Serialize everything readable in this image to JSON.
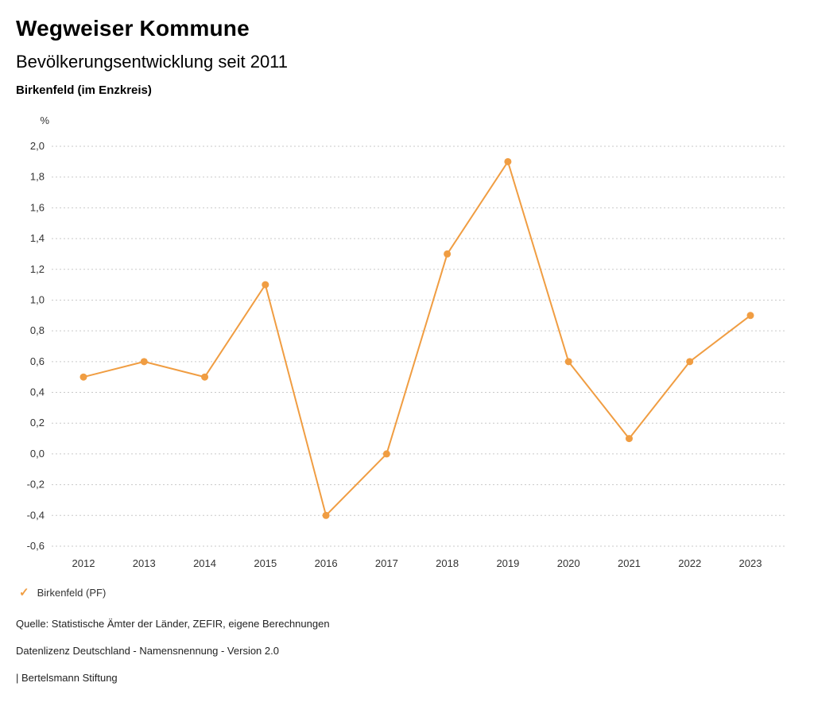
{
  "header": {
    "title": "Wegweiser Kommune",
    "subtitle": "Bevölkerungsentwicklung seit 2011",
    "region": "Birkenfeld (im Enzkreis)"
  },
  "chart_data": {
    "type": "line",
    "title": "Bevölkerungsentwicklung seit 2011",
    "subtitle": "Birkenfeld (im Enzkreis)",
    "unit_label": "%",
    "xlabel": "",
    "ylabel": "%",
    "categories": [
      "2012",
      "2013",
      "2014",
      "2015",
      "2016",
      "2017",
      "2018",
      "2019",
      "2020",
      "2021",
      "2022",
      "2023"
    ],
    "series": [
      {
        "name": "Birkenfeld (PF)",
        "values": [
          0.5,
          0.6,
          0.5,
          1.1,
          -0.4,
          0.0,
          1.3,
          1.9,
          0.6,
          0.1,
          0.6,
          0.9
        ],
        "color": "#F09D42"
      }
    ],
    "ylim": [
      -0.6,
      2.0
    ],
    "ytick_step": 0.2,
    "ytick_labels": [
      "2,0",
      "1,8",
      "1,6",
      "1,4",
      "1,2",
      "1,0",
      "0,8",
      "0,6",
      "0,4",
      "0,2",
      "0,0",
      "-0,2",
      "-0,4",
      "-0,6"
    ],
    "grid": true,
    "grid_style": "dotted",
    "legend_position": "bottom",
    "decimal_separator": ","
  },
  "legend": {
    "items": [
      {
        "label": "Birkenfeld (PF)",
        "color": "#F09D42",
        "icon": "check"
      }
    ]
  },
  "footer": {
    "source": "Quelle: Statistische Ämter der Länder, ZEFIR, eigene Berechnungen",
    "license": "Datenlizenz Deutschland - Namensnennung - Version 2.0",
    "attribution": "| Bertelsmann Stiftung"
  }
}
